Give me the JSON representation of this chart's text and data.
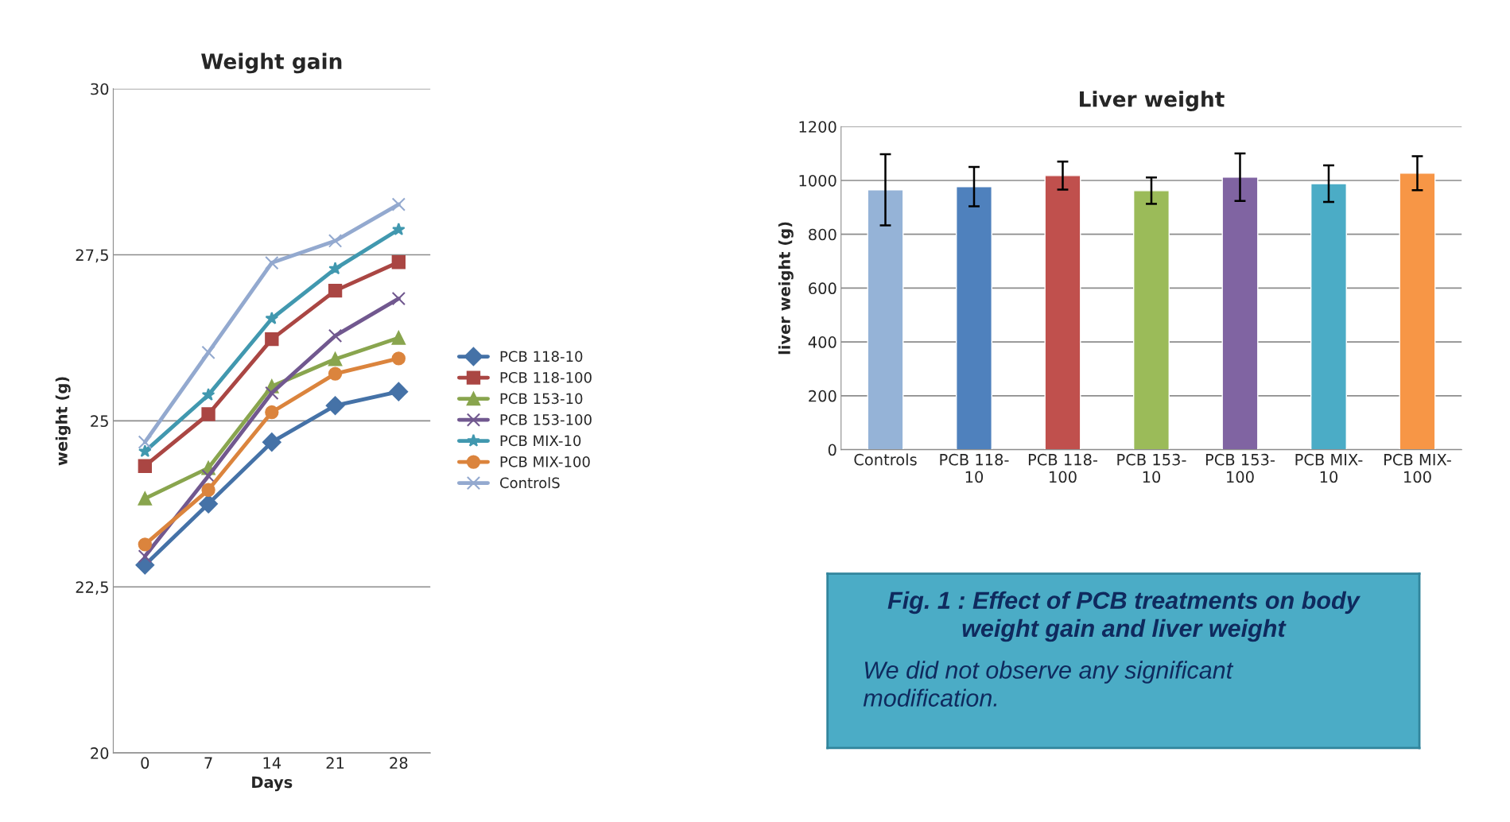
{
  "chart_data": [
    {
      "type": "line",
      "title": "Weight gain",
      "xlabel": "Days",
      "ylabel": "weight (g)",
      "categories": [
        "0",
        "7",
        "14",
        "21",
        "28"
      ],
      "ylim": [
        20,
        30
      ],
      "yticks": [
        20,
        {
          "value": 22.5,
          "label": "22,5"
        },
        25,
        {
          "value": 27.5,
          "label": "27,5"
        },
        30
      ],
      "grid": "y",
      "legend": "right",
      "series": [
        {
          "name": "PCB 118-10",
          "color": "#4572a7",
          "marker": "diamond",
          "values": [
            22.83,
            23.75,
            24.68,
            25.23,
            25.44
          ]
        },
        {
          "name": "PCB 118-100",
          "color": "#aa4643",
          "marker": "square",
          "values": [
            24.32,
            25.1,
            26.23,
            26.96,
            27.39
          ]
        },
        {
          "name": "PCB 153-10",
          "color": "#89a54e",
          "marker": "triangle",
          "values": [
            23.83,
            24.29,
            25.52,
            25.93,
            26.25
          ]
        },
        {
          "name": "PCB 153-100",
          "color": "#71588f",
          "marker": "cross",
          "values": [
            22.96,
            24.17,
            25.42,
            26.28,
            26.84
          ]
        },
        {
          "name": "PCB MIX-10",
          "color": "#4198af",
          "marker": "star",
          "values": [
            24.54,
            25.39,
            26.54,
            27.29,
            27.88
          ]
        },
        {
          "name": "PCB MIX-100",
          "color": "#db843d",
          "marker": "circle",
          "values": [
            23.14,
            23.96,
            25.13,
            25.71,
            25.94
          ]
        },
        {
          "name": "ControlS",
          "color": "#93a9cf",
          "marker": "cross",
          "values": [
            24.68,
            26.03,
            27.38,
            27.71,
            28.26
          ]
        }
      ]
    },
    {
      "type": "bar",
      "title": "Liver weight",
      "ylabel": "liver weight (g)",
      "categories": [
        "Controls",
        "PCB 118-10",
        "PCB 118-100",
        "PCB 153-10",
        "PCB 153-100",
        "PCB MIX-10",
        "PCB MIX-100"
      ],
      "values": [
        965,
        977,
        1018,
        962,
        1012,
        988,
        1027
      ],
      "errors": [
        132,
        73,
        52,
        49,
        88,
        68,
        63
      ],
      "colors": [
        "#95b3d7",
        "#4f81bd",
        "#c0504d",
        "#9bbb59",
        "#8064a2",
        "#4bacc6",
        "#f79646"
      ],
      "ylim": [
        0,
        1200
      ],
      "yticks": [
        0,
        200,
        400,
        600,
        800,
        1000,
        1200
      ],
      "grid": "y"
    },
    {
      "type": "other",
      "title": "Fig. 1 : Effect of PCB treatments on body weight gain and liver weight",
      "annotations": [
        "We did not observe any significant modification."
      ]
    }
  ]
}
